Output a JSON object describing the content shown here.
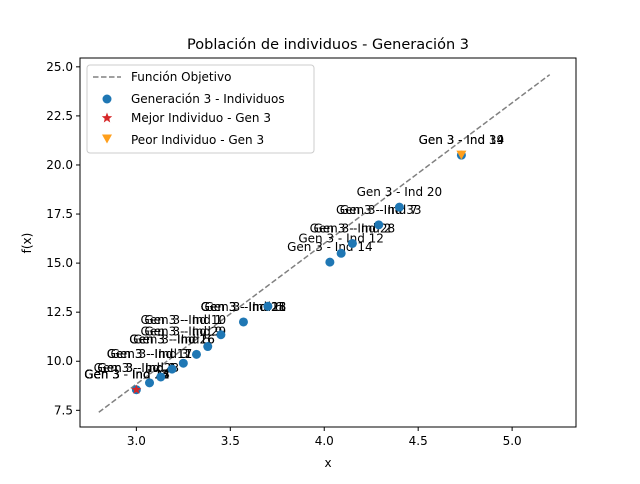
{
  "chart_data": {
    "type": "scatter",
    "title": "Población de individuos - Generación 3",
    "xlabel": "x",
    "ylabel": "f(x)",
    "xlim": [
      2.7,
      5.34
    ],
    "ylim": [
      6.65,
      25.45
    ],
    "grid": false,
    "legend_position": "top-left",
    "x_ticks": [
      {
        "value": 3.0,
        "label": "3.0"
      },
      {
        "value": 3.5,
        "label": "3.5"
      },
      {
        "value": 4.0,
        "label": "4.0"
      },
      {
        "value": 4.5,
        "label": "4.5"
      },
      {
        "value": 5.0,
        "label": "5.0"
      }
    ],
    "y_ticks": [
      {
        "value": 7.5,
        "label": "7.5"
      },
      {
        "value": 10.0,
        "label": "10.0"
      },
      {
        "value": 12.5,
        "label": "12.5"
      },
      {
        "value": 15.0,
        "label": "15.0"
      },
      {
        "value": 17.5,
        "label": "17.5"
      },
      {
        "value": 20.0,
        "label": "20.0"
      },
      {
        "value": 22.5,
        "label": "22.5"
      },
      {
        "value": 25.0,
        "label": "25.0"
      }
    ],
    "objective_line": {
      "name": "Función Objetivo",
      "color": "#808080",
      "dash": "dashed",
      "x": [
        2.8,
        5.2
      ],
      "y": [
        7.4,
        24.6
      ]
    },
    "series": [
      {
        "name": "Generación 3 - Individuos",
        "marker": "circle",
        "color": "#1f77b4",
        "points": [
          {
            "x": 3.0,
            "y": 8.55
          },
          {
            "x": 3.07,
            "y": 8.9
          },
          {
            "x": 3.13,
            "y": 9.2
          },
          {
            "x": 3.19,
            "y": 9.6
          },
          {
            "x": 3.25,
            "y": 9.9
          },
          {
            "x": 3.32,
            "y": 10.35
          },
          {
            "x": 3.38,
            "y": 10.75
          },
          {
            "x": 3.45,
            "y": 11.35
          },
          {
            "x": 3.57,
            "y": 12.0
          },
          {
            "x": 3.7,
            "y": 12.8
          },
          {
            "x": 4.03,
            "y": 15.05
          },
          {
            "x": 4.09,
            "y": 15.5
          },
          {
            "x": 4.15,
            "y": 16.0
          },
          {
            "x": 4.29,
            "y": 16.95
          },
          {
            "x": 4.4,
            "y": 17.85
          },
          {
            "x": 4.73,
            "y": 20.5
          }
        ]
      },
      {
        "name": "Mejor Individuo - Gen 3",
        "marker": "star",
        "color": "#d62728",
        "points": [
          {
            "x": 3.0,
            "y": 8.55
          }
        ]
      },
      {
        "name": "Peor Individuo - Gen 3",
        "marker": "triangle-down",
        "color": "#ff9f1c",
        "points": [
          {
            "x": 4.73,
            "y": 20.5
          }
        ]
      }
    ],
    "annotations": [
      {
        "text": "Gen 3 - Ind 19",
        "x": 4.73,
        "y": 20.5
      },
      {
        "text": "Gen 3 - Ind 34",
        "x": 4.73,
        "y": 20.5
      },
      {
        "text": "Gen 3 - Ind 7",
        "x": 4.29,
        "y": 16.95
      },
      {
        "text": "Gen 3 - Ind 33",
        "x": 4.29,
        "y": 16.95
      },
      {
        "text": "Gen 3 - Ind 20",
        "x": 4.4,
        "y": 17.85
      },
      {
        "text": "Gen 3 - Ind 2",
        "x": 4.15,
        "y": 16.0
      },
      {
        "text": "Gen 3 - Ind 28",
        "x": 4.15,
        "y": 16.0
      },
      {
        "text": "Gen 3 - Ind 12",
        "x": 4.09,
        "y": 15.5
      },
      {
        "text": "Gen 3 - Ind 14",
        "x": 4.03,
        "y": 15.05
      },
      {
        "text": "Gen 3 - Ind 6",
        "x": 3.57,
        "y": 12.0
      },
      {
        "text": "Gen 3 - Ind 18",
        "x": 3.57,
        "y": 12.0
      },
      {
        "text": "Gen 3 - Ind 21",
        "x": 3.57,
        "y": 12.0
      },
      {
        "text": "Gen 3 - Ind 25",
        "x": 3.57,
        "y": 12.0
      },
      {
        "text": "Gen 3 - Ind 1",
        "x": 3.25,
        "y": 11.35
      },
      {
        "text": "Gen 3 - Ind 10",
        "x": 3.25,
        "y": 11.35
      },
      {
        "text": "Gen 3 - Ind 9",
        "x": 3.25,
        "y": 10.75
      },
      {
        "text": "Gen 3 - Ind 29",
        "x": 3.25,
        "y": 10.75
      },
      {
        "text": "Gen 3 - Ind 5",
        "x": 3.19,
        "y": 10.35
      },
      {
        "text": "Gen 3 - Ind 16",
        "x": 3.19,
        "y": 10.35
      },
      {
        "text": "Gen 3 - Ind 26",
        "x": 3.19,
        "y": 10.35
      },
      {
        "text": "Gen 3 - Ind 3",
        "x": 3.07,
        "y": 9.6
      },
      {
        "text": "Gen 3 - Ind 11",
        "x": 3.07,
        "y": 9.6
      },
      {
        "text": "Gen 3 - Ind 17",
        "x": 3.07,
        "y": 9.6
      },
      {
        "text": "Gen 3 - Ind 4",
        "x": 3.0,
        "y": 8.9
      },
      {
        "text": "Gen 3 - Ind 8",
        "x": 3.0,
        "y": 8.9
      },
      {
        "text": "Gen 3 - Ind 23",
        "x": 3.0,
        "y": 8.9
      },
      {
        "text": "Gen 3 - Ind 13",
        "x": 2.95,
        "y": 8.55
      },
      {
        "text": "Gen 3 - Ind 15",
        "x": 2.95,
        "y": 8.55
      },
      {
        "text": "Gen 3 - Ind 22",
        "x": 2.95,
        "y": 8.55
      },
      {
        "text": "Gen 3 - Ind 24",
        "x": 2.95,
        "y": 8.55
      },
      {
        "text": "Gen 3 - Ind 27",
        "x": 2.95,
        "y": 8.55
      }
    ]
  }
}
